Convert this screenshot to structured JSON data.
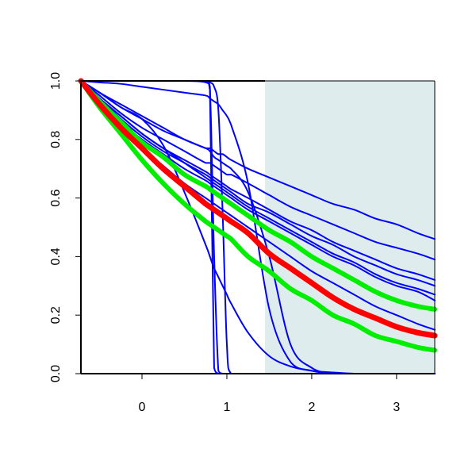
{
  "chart_data": {
    "type": "line",
    "title": "",
    "xlabel": "",
    "ylabel": "",
    "xlim": [
      -0.72,
      3.45
    ],
    "ylim": [
      0,
      1
    ],
    "x_ticks": [
      0,
      1,
      2,
      3
    ],
    "y_ticks": [
      0.0,
      0.2,
      0.4,
      0.6,
      0.8,
      1.0
    ],
    "x_tick_labels": [
      "0",
      "1",
      "2",
      "3"
    ],
    "y_tick_labels": [
      "0.0",
      "0.2",
      "0.4",
      "0.6",
      "0.8",
      "1.0"
    ],
    "grid": false,
    "legend": "none",
    "shaded_region": {
      "x_from": 1.45,
      "x_to": 3.45,
      "color": "#dfeced"
    },
    "colors": {
      "blue": "#0000ff",
      "green": "#00ee00",
      "red": "#ff0000",
      "axis": "#000000"
    },
    "x": [
      -0.72,
      -0.5,
      -0.25,
      0,
      0.25,
      0.5,
      0.75,
      0.8,
      0.85,
      0.9,
      0.95,
      1.0,
      1.05,
      1.25,
      1.5,
      1.75,
      2,
      2.25,
      2.5,
      2.75,
      3,
      3.25,
      3.45
    ],
    "series": [
      {
        "color": "blue",
        "width": 2,
        "values": [
          1.0,
          0.96,
          0.91,
          0.87,
          0.83,
          0.8,
          0.77,
          0.77,
          0.76,
          0.75,
          0.75,
          0.74,
          0.73,
          0.7,
          0.67,
          0.64,
          0.61,
          0.58,
          0.56,
          0.53,
          0.51,
          0.48,
          0.46
        ]
      },
      {
        "color": "blue",
        "width": 2,
        "values": [
          1.0,
          0.95,
          0.89,
          0.84,
          0.8,
          0.76,
          0.72,
          0.72,
          0.71,
          0.7,
          0.69,
          0.68,
          0.68,
          0.65,
          0.61,
          0.57,
          0.54,
          0.51,
          0.48,
          0.45,
          0.43,
          0.41,
          0.39
        ]
      },
      {
        "color": "blue",
        "width": 2,
        "values": [
          1.0,
          0.94,
          0.88,
          0.82,
          0.77,
          0.73,
          0.69,
          0.68,
          0.67,
          0.66,
          0.65,
          0.64,
          0.63,
          0.6,
          0.56,
          0.52,
          0.49,
          0.45,
          0.42,
          0.39,
          0.36,
          0.34,
          0.32
        ]
      },
      {
        "color": "blue",
        "width": 2,
        "values": [
          1.0,
          0.94,
          0.87,
          0.81,
          0.76,
          0.72,
          0.68,
          0.67,
          0.66,
          0.65,
          0.64,
          0.63,
          0.62,
          0.58,
          0.55,
          0.51,
          0.47,
          0.44,
          0.4,
          0.37,
          0.34,
          0.32,
          0.3
        ]
      },
      {
        "color": "blue",
        "width": 2,
        "values": [
          1.0,
          0.94,
          0.88,
          0.82,
          0.77,
          0.72,
          0.67,
          0.66,
          0.65,
          0.64,
          0.63,
          0.62,
          0.61,
          0.57,
          0.53,
          0.49,
          0.45,
          0.41,
          0.38,
          0.34,
          0.31,
          0.29,
          0.27
        ]
      },
      {
        "color": "blue",
        "width": 2,
        "values": [
          1.0,
          0.93,
          0.86,
          0.8,
          0.75,
          0.7,
          0.66,
          0.65,
          0.64,
          0.63,
          0.62,
          0.61,
          0.6,
          0.56,
          0.52,
          0.48,
          0.44,
          0.4,
          0.37,
          0.33,
          0.3,
          0.28,
          0.25
        ]
      },
      {
        "color": "blue",
        "width": 2,
        "values": [
          1.0,
          0.92,
          0.84,
          0.77,
          0.71,
          0.65,
          0.6,
          0.59,
          0.58,
          0.57,
          0.56,
          0.55,
          0.54,
          0.5,
          0.45,
          0.4,
          0.35,
          0.31,
          0.27,
          0.23,
          0.2,
          0.17,
          0.15
        ]
      },
      {
        "color": "blue",
        "width": 2,
        "values": [
          1.0,
          1.0,
          1.0,
          1.0,
          1.0,
          1.0,
          1.0,
          0.995,
          0.98,
          0.9,
          0.55,
          0.1,
          0.0,
          0.0,
          0.0,
          0.0,
          0.0,
          0.0,
          0.0,
          0.0,
          0.0,
          0.0,
          0.0
        ]
      },
      {
        "color": "blue",
        "width": 2,
        "values": [
          1.0,
          1.0,
          1.0,
          1.0,
          1.0,
          1.0,
          1.0,
          0.98,
          0.4,
          0.01,
          0.0,
          0.0,
          0.0,
          0.0,
          0.0,
          0.0,
          0.0,
          0.0,
          0.0,
          0.0,
          0.0,
          0.0,
          0.0
        ]
      },
      {
        "color": "blue",
        "width": 2,
        "values": [
          1.0,
          1.0,
          1.0,
          1.0,
          1.0,
          1.0,
          0.995,
          0.97,
          0.02,
          0.0,
          0.0,
          0.0,
          0.0,
          0.0,
          0.0,
          0.0,
          0.0,
          0.0,
          0.0,
          0.0,
          0.0,
          0.0,
          0.0
        ]
      },
      {
        "color": "blue",
        "width": 2,
        "values": [
          1.0,
          0.995,
          0.99,
          0.98,
          0.97,
          0.96,
          0.95,
          0.94,
          0.93,
          0.92,
          0.9,
          0.88,
          0.85,
          0.65,
          0.22,
          0.04,
          0.01,
          0.0,
          0.0,
          0.0,
          0.0,
          0.0,
          0.0
        ]
      },
      {
        "color": "blue",
        "width": 2,
        "values": [
          1.0,
          0.96,
          0.92,
          0.88,
          0.84,
          0.8,
          0.77,
          0.76,
          0.74,
          0.73,
          0.72,
          0.71,
          0.7,
          0.62,
          0.4,
          0.1,
          0.02,
          0.0,
          0.0,
          0.0,
          0.0,
          0.0,
          0.0
        ]
      },
      {
        "color": "blue",
        "width": 2,
        "values": [
          1.0,
          0.96,
          0.91,
          0.87,
          0.78,
          0.62,
          0.44,
          0.4,
          0.36,
          0.33,
          0.3,
          0.27,
          0.24,
          0.14,
          0.06,
          0.025,
          0.01,
          0.004,
          0.0,
          0.0,
          0.0,
          0.0,
          0.0
        ]
      },
      {
        "color": "green",
        "width": 6,
        "values": [
          1.0,
          0.93,
          0.86,
          0.79,
          0.74,
          0.68,
          0.64,
          0.63,
          0.62,
          0.61,
          0.6,
          0.59,
          0.58,
          0.54,
          0.49,
          0.45,
          0.4,
          0.36,
          0.32,
          0.28,
          0.25,
          0.23,
          0.22
        ]
      },
      {
        "color": "green",
        "width": 6,
        "values": [
          1.0,
          0.91,
          0.82,
          0.73,
          0.65,
          0.58,
          0.52,
          0.51,
          0.5,
          0.49,
          0.48,
          0.47,
          0.46,
          0.4,
          0.35,
          0.29,
          0.25,
          0.2,
          0.17,
          0.13,
          0.11,
          0.09,
          0.08
        ]
      },
      {
        "color": "red",
        "width": 7,
        "values": [
          1.0,
          0.92,
          0.84,
          0.77,
          0.7,
          0.64,
          0.58,
          0.57,
          0.56,
          0.55,
          0.54,
          0.53,
          0.52,
          0.48,
          0.41,
          0.36,
          0.31,
          0.26,
          0.22,
          0.19,
          0.16,
          0.14,
          0.13
        ]
      }
    ]
  }
}
